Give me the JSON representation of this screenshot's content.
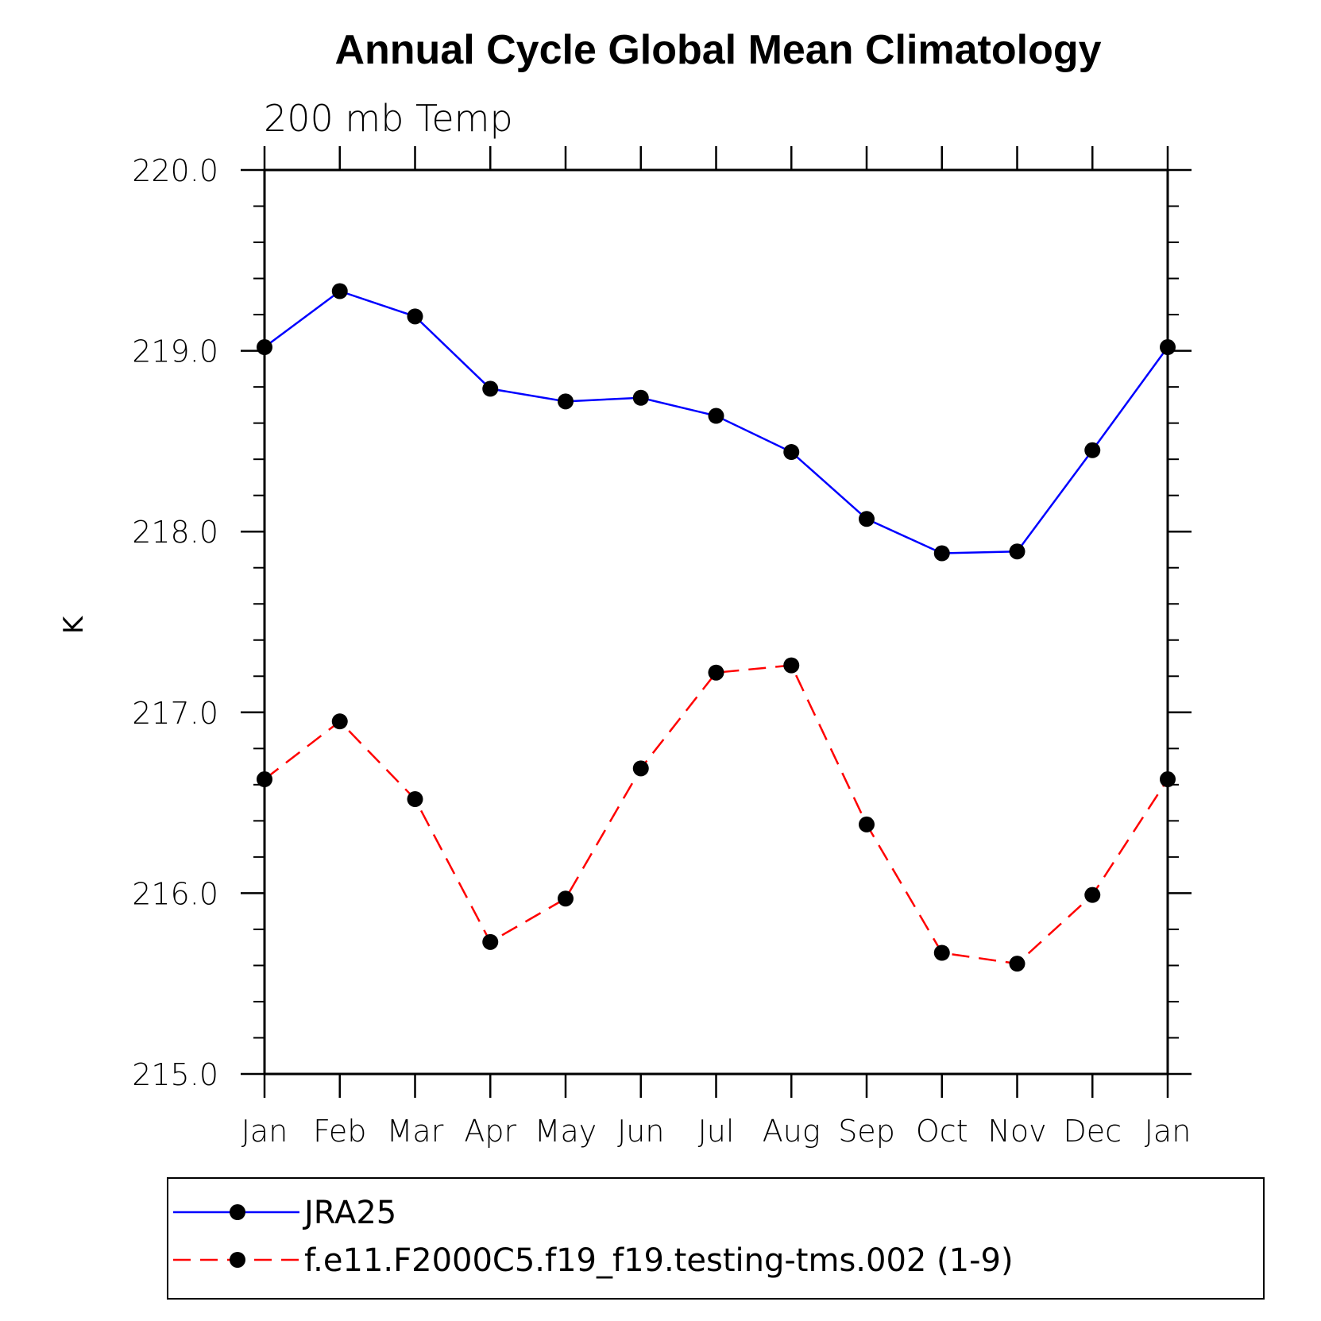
{
  "chart_data": {
    "type": "line",
    "title": "Annual Cycle Global Mean Climatology",
    "subtitle": "200 mb Temp",
    "xlabel": "",
    "ylabel": "K",
    "ylim": [
      215.0,
      220.0
    ],
    "yticks": [
      215.0,
      216.0,
      217.0,
      218.0,
      219.0,
      220.0
    ],
    "ytick_labels": [
      "215.0",
      "216.0",
      "217.0",
      "218.0",
      "219.0",
      "220.0"
    ],
    "categories": [
      "Jan",
      "Feb",
      "Mar",
      "Apr",
      "May",
      "Jun",
      "Jul",
      "Aug",
      "Sep",
      "Oct",
      "Nov",
      "Dec",
      "Jan"
    ],
    "series": [
      {
        "name": "JRA25",
        "color": "#0000ff",
        "dash": "solid",
        "values": [
          219.02,
          219.33,
          219.19,
          218.79,
          218.72,
          218.74,
          218.64,
          218.44,
          218.07,
          217.88,
          217.89,
          218.45,
          219.02
        ]
      },
      {
        "name": "f.e11.F2000C5.f19_f19.testing-tms.002 (1-9)",
        "color": "#ff0000",
        "dash": "dashed",
        "values": [
          216.63,
          216.95,
          216.52,
          215.73,
          215.97,
          216.69,
          217.22,
          217.26,
          216.38,
          215.67,
          215.61,
          215.99,
          216.63
        ]
      }
    ],
    "legend_position": "bottom"
  }
}
